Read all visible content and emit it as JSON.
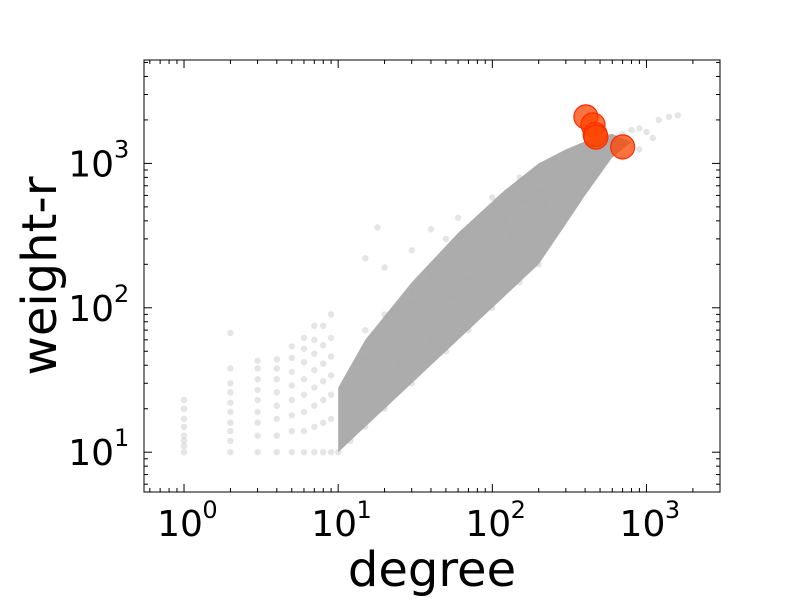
{
  "chart_data": {
    "type": "scatter",
    "xlabel": "degree",
    "ylabel": "weight-r",
    "xscale": "log",
    "yscale": "log",
    "xlim": [
      0.55,
      3000
    ],
    "ylim": [
      5.3,
      5200
    ],
    "grid": false,
    "xticks": [
      {
        "value": 1,
        "base": "10",
        "exp": "0"
      },
      {
        "value": 10,
        "base": "10",
        "exp": "1"
      },
      {
        "value": 100,
        "base": "10",
        "exp": "2"
      },
      {
        "value": 1000,
        "base": "10",
        "exp": "3"
      }
    ],
    "yticks": [
      {
        "value": 10,
        "base": "10",
        "exp": "1"
      },
      {
        "value": 100,
        "base": "10",
        "exp": "2"
      },
      {
        "value": 1000,
        "base": "10",
        "exp": "3"
      }
    ],
    "series": [
      {
        "color": "#a8a8a8",
        "alpha": 0.3,
        "points": [
          [
            1,
            10
          ],
          [
            1,
            11
          ],
          [
            1,
            12
          ],
          [
            1,
            13
          ],
          [
            1,
            15
          ],
          [
            1,
            17
          ],
          [
            1,
            20
          ],
          [
            1,
            23
          ],
          [
            2,
            10
          ],
          [
            2,
            12
          ],
          [
            2,
            14
          ],
          [
            2,
            16
          ],
          [
            2,
            19
          ],
          [
            2,
            22
          ],
          [
            2,
            26
          ],
          [
            2,
            30
          ],
          [
            2,
            38
          ],
          [
            2,
            67
          ],
          [
            3,
            10
          ],
          [
            3,
            13
          ],
          [
            3,
            16
          ],
          [
            3,
            19
          ],
          [
            3,
            23
          ],
          [
            3,
            27
          ],
          [
            3,
            32
          ],
          [
            3,
            38
          ],
          [
            3,
            43
          ],
          [
            4,
            10
          ],
          [
            4,
            13
          ],
          [
            4,
            17
          ],
          [
            4,
            21
          ],
          [
            4,
            26
          ],
          [
            4,
            32
          ],
          [
            4,
            38
          ],
          [
            4,
            44
          ],
          [
            5,
            10
          ],
          [
            5,
            14
          ],
          [
            5,
            18
          ],
          [
            5,
            23
          ],
          [
            5,
            29
          ],
          [
            5,
            36
          ],
          [
            5,
            45
          ],
          [
            5,
            54
          ],
          [
            6,
            10
          ],
          [
            6,
            14
          ],
          [
            6,
            19
          ],
          [
            6,
            25
          ],
          [
            6,
            32
          ],
          [
            6,
            42
          ],
          [
            6,
            52
          ],
          [
            6,
            62
          ],
          [
            7,
            10
          ],
          [
            7,
            15
          ],
          [
            7,
            21
          ],
          [
            7,
            28
          ],
          [
            7,
            37
          ],
          [
            7,
            48
          ],
          [
            7,
            60
          ],
          [
            7,
            75
          ],
          [
            8,
            10
          ],
          [
            8,
            16
          ],
          [
            8,
            23
          ],
          [
            8,
            31
          ],
          [
            8,
            41
          ],
          [
            8,
            55
          ],
          [
            8,
            75
          ],
          [
            9,
            10
          ],
          [
            9,
            17
          ],
          [
            9,
            25
          ],
          [
            9,
            34
          ],
          [
            9,
            46
          ],
          [
            9,
            62
          ],
          [
            9,
            90
          ],
          [
            10,
            10
          ],
          [
            12,
            12
          ],
          [
            15,
            15
          ],
          [
            20,
            20
          ],
          [
            30,
            30
          ],
          [
            50,
            50
          ],
          [
            70,
            70
          ],
          [
            100,
            100
          ],
          [
            150,
            150
          ],
          [
            200,
            200
          ],
          [
            12,
            30
          ],
          [
            15,
            45
          ],
          [
            20,
            70
          ],
          [
            25,
            100
          ],
          [
            30,
            130
          ],
          [
            40,
            170
          ],
          [
            60,
            260
          ],
          [
            80,
            350
          ],
          [
            120,
            500
          ],
          [
            180,
            700
          ],
          [
            250,
            900
          ],
          [
            350,
            1100
          ],
          [
            15,
            220
          ],
          [
            18,
            360
          ],
          [
            20,
            190
          ],
          [
            30,
            250
          ],
          [
            40,
            350
          ],
          [
            50,
            300
          ],
          [
            60,
            420
          ],
          [
            100,
            580
          ],
          [
            150,
            800
          ],
          [
            200,
            650
          ],
          [
            300,
            950
          ],
          [
            400,
            1200
          ],
          [
            500,
            1500
          ],
          [
            15,
            70
          ],
          [
            20,
            90
          ],
          [
            30,
            110
          ],
          [
            40,
            140
          ],
          [
            60,
            200
          ],
          [
            80,
            280
          ],
          [
            120,
            400
          ],
          [
            160,
            550
          ],
          [
            220,
            650
          ],
          [
            300,
            800
          ],
          [
            400,
            900
          ],
          [
            500,
            1050
          ],
          [
            35,
            75
          ],
          [
            45,
            95
          ],
          [
            55,
            120
          ],
          [
            70,
            160
          ],
          [
            90,
            210
          ],
          [
            110,
            260
          ],
          [
            130,
            310
          ],
          [
            170,
            420
          ],
          [
            220,
            520
          ],
          [
            280,
            650
          ],
          [
            350,
            750
          ],
          [
            25,
            40
          ],
          [
            40,
            60
          ],
          [
            60,
            90
          ],
          [
            90,
            130
          ],
          [
            130,
            180
          ],
          [
            180,
            240
          ],
          [
            250,
            330
          ],
          [
            600,
            1400
          ],
          [
            700,
            1600
          ],
          [
            800,
            1700
          ],
          [
            900,
            1750
          ],
          [
            1000,
            1650
          ],
          [
            1100,
            1500
          ],
          [
            1200,
            2000
          ],
          [
            1400,
            2100
          ],
          [
            1600,
            2150
          ],
          [
            900,
            1250
          ],
          [
            700,
            1100
          ]
        ]
      },
      {
        "color": "#ff4400",
        "alpha": 0.75,
        "points": [
          [
            405,
            2100
          ],
          [
            450,
            1850
          ],
          [
            465,
            1580
          ],
          [
            470,
            1520
          ],
          [
            700,
            1300
          ]
        ]
      }
    ]
  }
}
